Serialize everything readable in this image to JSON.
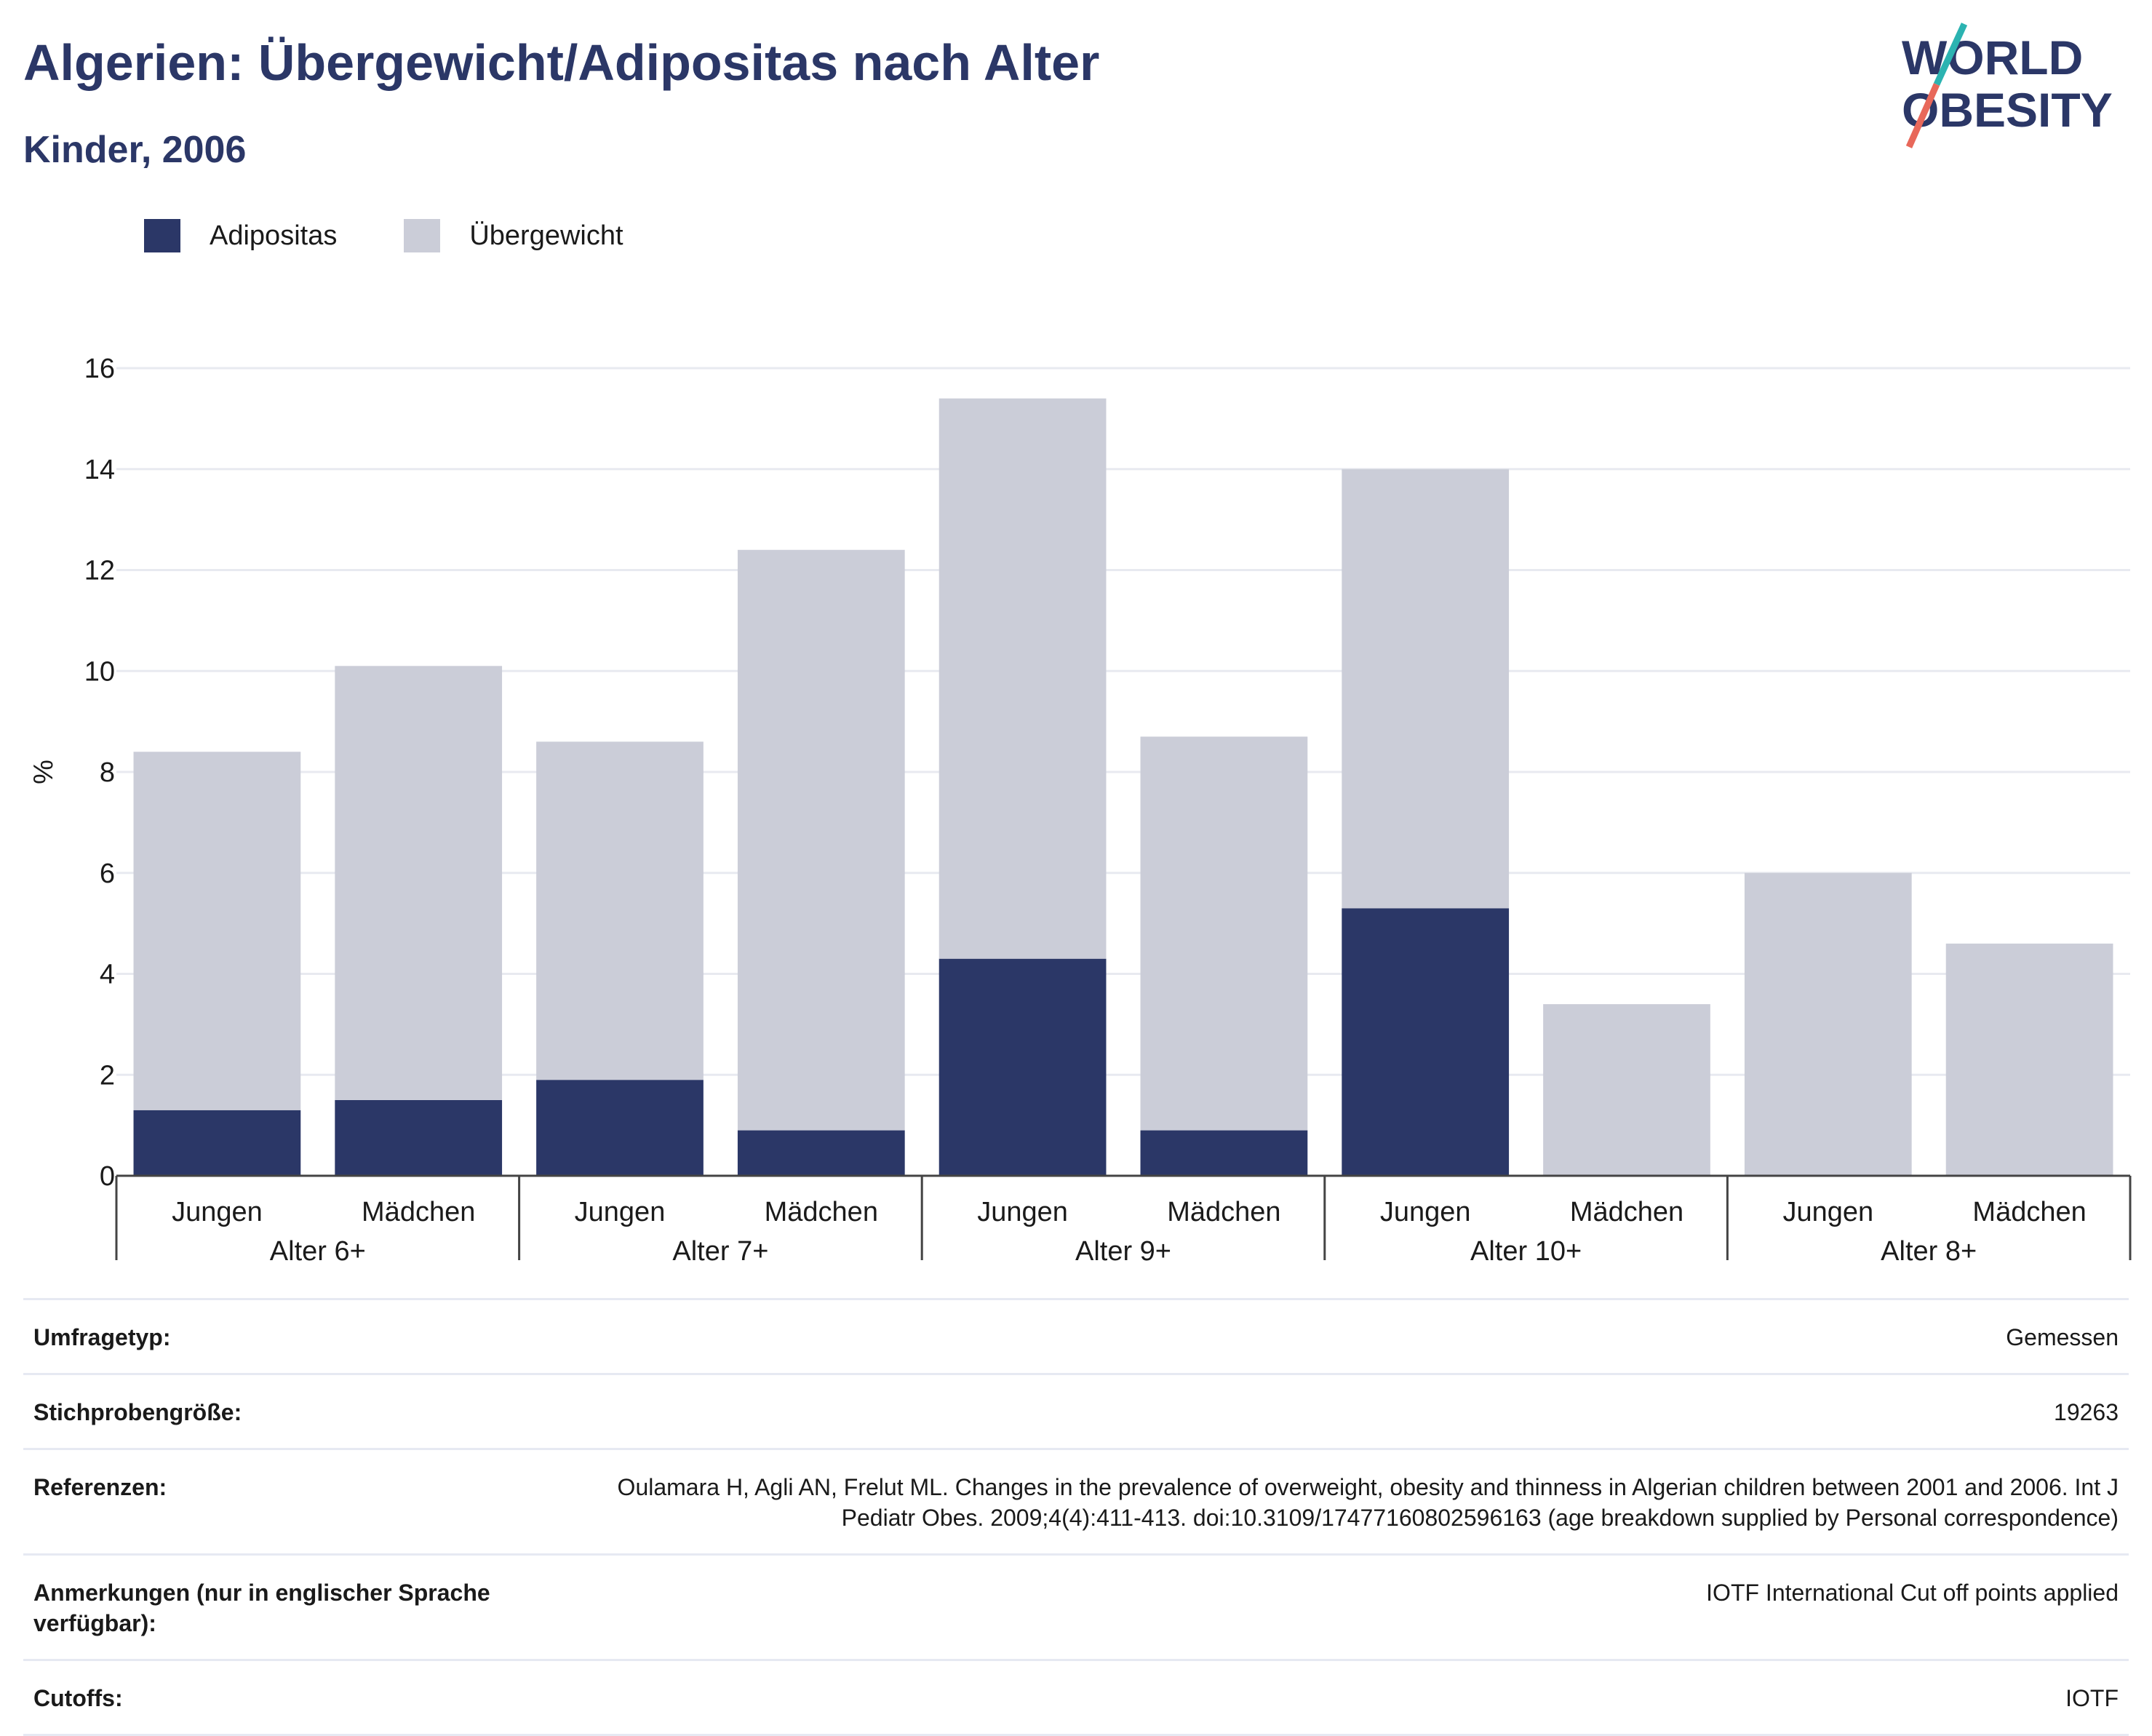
{
  "header": {
    "title": "Algerien: Übergewicht/Adipositas nach Alter",
    "subtitle": "Kinder, 2006",
    "logo_text": "WORLD OBESITY"
  },
  "colors": {
    "adipositas": "#2b3767",
    "uebergewicht": "#cbcdd8",
    "title": "#2b3767",
    "logo_teal": "#2bb3b1",
    "logo_coral": "#e8685a",
    "grid": "#e8eaf0"
  },
  "legend": [
    {
      "label": "Adipositas",
      "color": "#2b3767"
    },
    {
      "label": "Übergewicht",
      "color": "#cbcdd8"
    }
  ],
  "chart_data": {
    "type": "bar",
    "stacked": true,
    "ylabel": "%",
    "ylim": [
      0,
      16
    ],
    "yticks": [
      0,
      2,
      4,
      6,
      8,
      10,
      12,
      14,
      16
    ],
    "grid": true,
    "legend_position": "top-left",
    "groups": [
      "Alter 6+",
      "Alter 7+",
      "Alter 9+",
      "Alter 10+",
      "Alter 8+"
    ],
    "categories": [
      "Jungen",
      "Mädchen",
      "Jungen",
      "Mädchen",
      "Jungen",
      "Mädchen",
      "Jungen",
      "Mädchen",
      "Jungen",
      "Mädchen"
    ],
    "series": [
      {
        "name": "Adipositas",
        "values": [
          1.3,
          1.5,
          1.9,
          0.9,
          4.3,
          0.9,
          5.3,
          0,
          0,
          0
        ]
      },
      {
        "name": "Übergewicht",
        "values": [
          7.1,
          8.6,
          6.7,
          11.5,
          11.1,
          7.8,
          8.7,
          3.4,
          6.0,
          4.6
        ]
      }
    ]
  },
  "metadata": [
    {
      "key": "Umfragetyp:",
      "value": "Gemessen"
    },
    {
      "key": "Stichprobengröße:",
      "value": "19263"
    },
    {
      "key": "Referenzen:",
      "value": "Oulamara H, Agli AN, Frelut ML. Changes in the prevalence of overweight, obesity and thinness in Algerian children between 2001 and 2006. Int J Pediatr Obes. 2009;4(4):411-413. doi:10.3109/17477160802596163 (age breakdown supplied by Personal correspondence)"
    },
    {
      "key": "Anmerkungen (nur in englischer Sprache verfügbar):",
      "value": "IOTF International Cut off points applied"
    },
    {
      "key": "Cutoffs:",
      "value": "IOTF"
    }
  ]
}
